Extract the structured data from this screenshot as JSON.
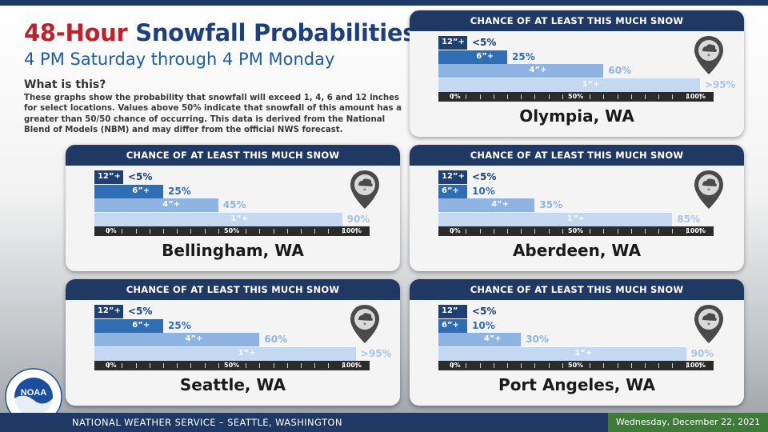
{
  "header": {
    "title_highlight": "48-Hour",
    "title_rest": " Snowfall Probabilities",
    "subtitle": "4 PM Saturday through 4 PM Monday",
    "what_heading": "What is this?",
    "description": "These graphs show the probability that snowfall will exceed 1, 4, 6 and 12 inches for select locations. Values above 50% indicate that snowfall of this amount has a greater than 50/50 chance of occurring. This data is derived from the National Blend of Models (NBM) and may differ from the official NWS forecast."
  },
  "colors": {
    "navy": "#1f3864",
    "title_red": "#c0202a",
    "title_blue": "#1d3f7c",
    "bar_12": "#1d3f74",
    "bar_6": "#2f6db5",
    "bar_4": "#8fb4e3",
    "bar_1": "#c5d8f2"
  },
  "chart_data": [
    {
      "type": "bar",
      "title": "CHANCE OF AT LEAST THIS MUCH SNOW",
      "location": "Olympia, WA",
      "categories": [
        "12”+",
        "6”+",
        "4”+",
        "1”+"
      ],
      "values": [
        5,
        25,
        60,
        95
      ],
      "value_labels": [
        "<5%",
        "25%",
        "60%",
        ">95%"
      ],
      "x_ticks": [
        "0%",
        "50%",
        "100%"
      ],
      "xlim": [
        0,
        100
      ]
    },
    {
      "type": "bar",
      "title": "CHANCE OF AT LEAST THIS MUCH SNOW",
      "location": "Bellingham, WA",
      "categories": [
        "12”+",
        "6”+",
        "4”+",
        "1”+"
      ],
      "values": [
        5,
        25,
        45,
        90
      ],
      "value_labels": [
        "<5%",
        "25%",
        "45%",
        "90%"
      ],
      "x_ticks": [
        "0%",
        "50%",
        "100%"
      ],
      "xlim": [
        0,
        100
      ]
    },
    {
      "type": "bar",
      "title": "CHANCE OF AT LEAST THIS MUCH SNOW",
      "location": "Aberdeen, WA",
      "categories": [
        "12”+",
        "6”+",
        "4”+",
        "1”+"
      ],
      "values": [
        5,
        10,
        35,
        85
      ],
      "value_labels": [
        "<5%",
        "10%",
        "35%",
        "85%"
      ],
      "x_ticks": [
        "0%",
        "50%",
        "100%"
      ],
      "xlim": [
        0,
        100
      ]
    },
    {
      "type": "bar",
      "title": "CHANCE OF AT LEAST THIS MUCH SNOW",
      "location": "Seattle, WA",
      "categories": [
        "12”+",
        "6”+",
        "4”+",
        "1”+"
      ],
      "values": [
        5,
        25,
        60,
        95
      ],
      "value_labels": [
        "<5%",
        "25%",
        "60%",
        ">95%"
      ],
      "x_ticks": [
        "0%",
        "50%",
        "100%"
      ],
      "xlim": [
        0,
        100
      ]
    },
    {
      "type": "bar",
      "title": "CHANCE OF AT LEAST THIS MUCH SNOW",
      "location": "Port Angeles, WA",
      "categories": [
        "12”",
        "6”+",
        "4”+",
        "1”+"
      ],
      "values": [
        5,
        10,
        30,
        90
      ],
      "value_labels": [
        "<5%",
        "10%",
        "30%",
        "90%"
      ],
      "x_ticks": [
        "0%",
        "50%",
        "100%"
      ],
      "xlim": [
        0,
        100
      ]
    }
  ],
  "icons": {
    "location_pin": "snow-cloud-pin-icon",
    "logo": "noaa-logo"
  },
  "logo_text": "NOAA",
  "logo_ring_text": "NATIONAL OCEANIC AND ATMOSPHERIC ADMINISTRATION · U.S. DEPARTMENT OF COMMERCE",
  "footer": {
    "office": "NATIONAL WEATHER SERVICE – SEATTLE, WASHINGTON",
    "date": "Wednesday, December 22, 2021"
  }
}
